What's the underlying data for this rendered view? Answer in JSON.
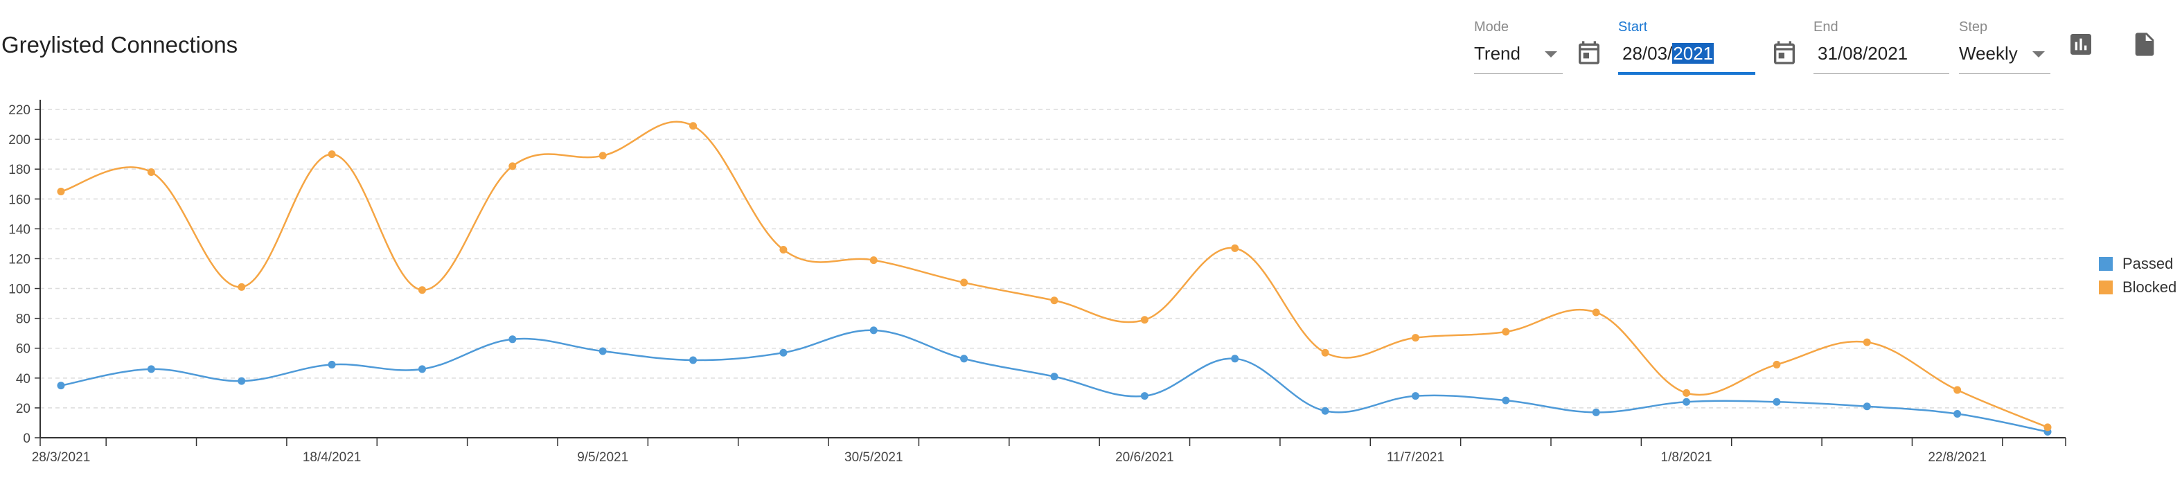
{
  "page": {
    "title": "Greylisted Connections"
  },
  "toolbar": {
    "mode": {
      "label": "Mode",
      "value": "Trend"
    },
    "start": {
      "label": "Start",
      "value_prefix": "28/03/",
      "value_selected": "2021",
      "icon": "calendar-icon"
    },
    "end": {
      "label": "End",
      "value": "31/08/2021",
      "icon": "calendar-icon"
    },
    "step": {
      "label": "Step",
      "value": "Weekly"
    },
    "chart_button_icon": "bar-chart-icon",
    "export_button_icon": "document-icon"
  },
  "colors": {
    "passed": "#4e9ad8",
    "blocked": "#f5a544",
    "accent": "#1976d2"
  },
  "chart_data": {
    "type": "line",
    "x": [
      "28/3/2021",
      "4/4/2021",
      "11/4/2021",
      "18/4/2021",
      "25/4/2021",
      "2/5/2021",
      "9/5/2021",
      "16/5/2021",
      "23/5/2021",
      "30/5/2021",
      "6/6/2021",
      "13/6/2021",
      "20/6/2021",
      "27/6/2021",
      "4/7/2021",
      "11/7/2021",
      "18/7/2021",
      "25/7/2021",
      "1/8/2021",
      "8/8/2021",
      "15/8/2021",
      "22/8/2021",
      "29/8/2021"
    ],
    "xticklabels": [
      "28/3/2021",
      "",
      "",
      "18/4/2021",
      "",
      "",
      "9/5/2021",
      "",
      "",
      "30/5/2021",
      "",
      "",
      "20/6/2021",
      "",
      "",
      "11/7/2021",
      "",
      "",
      "1/8/2021",
      "",
      "",
      "22/8/2021",
      ""
    ],
    "series": [
      {
        "name": "Passed",
        "values": [
          35,
          46,
          38,
          49,
          46,
          66,
          58,
          52,
          57,
          72,
          53,
          41,
          28,
          53,
          18,
          28,
          25,
          17,
          24,
          24,
          21,
          16,
          4
        ]
      },
      {
        "name": "Blocked",
        "values": [
          165,
          178,
          101,
          190,
          99,
          182,
          189,
          209,
          126,
          119,
          104,
          92,
          79,
          127,
          57,
          67,
          71,
          84,
          30,
          49,
          64,
          32,
          7
        ]
      }
    ],
    "yticks": [
      0,
      20,
      40,
      60,
      80,
      100,
      120,
      140,
      160,
      180,
      200,
      220
    ],
    "ylim": [
      0,
      230
    ],
    "grid": true,
    "legend_position": "right"
  }
}
